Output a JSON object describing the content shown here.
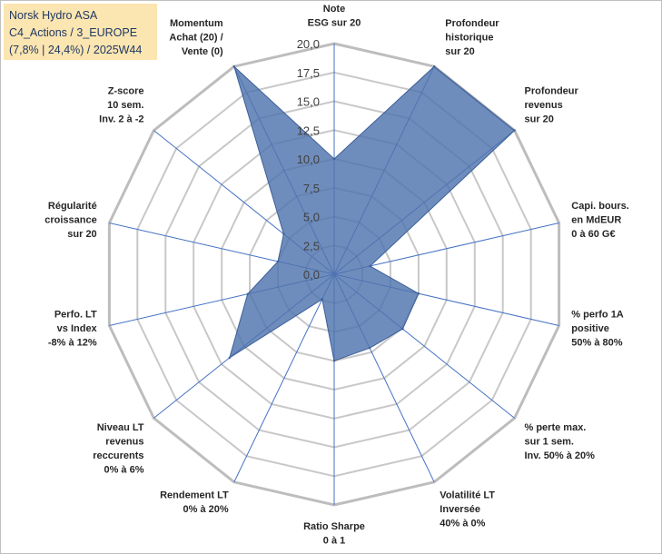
{
  "title": {
    "line1": "Norsk Hydro ASA",
    "line2": "C4_Actions / 3_EUROPE",
    "line3": "(7,8% | 24,4%) / 2025W44"
  },
  "colors": {
    "series_fill": "#4f74ad",
    "series_stroke": "#3b5f99",
    "grid": "#c8c8c8",
    "spoke": "#4472c4",
    "title_bg": "#fbe5b0",
    "title_text": "#1f3864"
  },
  "chart_data": {
    "type": "radar",
    "rmin": 0,
    "rmax": 20,
    "tick_step": 2.5,
    "grid_levels": 8,
    "tick_labels": [
      "0,0",
      "2,5",
      "5,0",
      "7,5",
      "10,0",
      "12,5",
      "15,0",
      "17,5",
      "20,0"
    ],
    "axes": [
      [
        "Note",
        "ESG sur 20"
      ],
      [
        "Profondeur",
        "historique",
        "sur 20"
      ],
      [
        "Profondeur",
        "revenus",
        "sur 20"
      ],
      [
        "Capi. bours.",
        "en MdEUR",
        "0 à 60 G€"
      ],
      [
        "% perfo 1A",
        "positive",
        "50% à 80%"
      ],
      [
        "% perte max.",
        "sur 1 sem.",
        "Inv. 50% à 20%"
      ],
      [
        "Volatilité LT",
        "Inversée",
        "40% à 0%"
      ],
      [
        "Ratio Sharpe",
        "0 à 1"
      ],
      [
        "Rendement LT",
        "0% à 20%"
      ],
      [
        "Niveau LT",
        "revenus",
        "reccurents",
        "0% à 6%"
      ],
      [
        "Perfo. LT",
        "vs Index",
        "-8% à 12%"
      ],
      [
        "Régularité",
        "croissance",
        "sur 20"
      ],
      [
        "Z-score",
        "10 sem.",
        "Inv. 2 à -2"
      ],
      [
        "Momentum",
        "Achat (20) /",
        "Vente (0)"
      ]
    ],
    "series": [
      {
        "name": "Norsk Hydro ASA",
        "values": [
          10.0,
          20.0,
          20.0,
          3.2,
          7.5,
          7.6,
          7.1,
          7.5,
          2.4,
          11.6,
          7.7,
          5.0,
          5.6,
          20.0
        ]
      }
    ]
  }
}
